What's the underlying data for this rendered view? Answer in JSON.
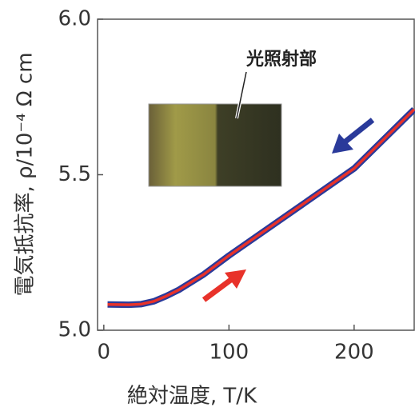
{
  "chart_data": {
    "type": "line",
    "xlabel": "絶対温度, T/K",
    "ylabel": "電気抵抗率, ρ/10⁻⁴ Ω cm",
    "annotation": "光照射部",
    "x": [
      3,
      20,
      30,
      40,
      50,
      60,
      80,
      100,
      150,
      200,
      248
    ],
    "values": [
      5.083,
      5.082,
      5.084,
      5.093,
      5.11,
      5.13,
      5.18,
      5.24,
      5.38,
      5.52,
      5.71
    ],
    "color": "#e8322a",
    "outline_color": "#2a3a9a",
    "xlim": [
      -5,
      248
    ],
    "ylim": [
      5.0,
      6.0
    ],
    "xticks": [
      0,
      100,
      200
    ],
    "yticks": [
      {
        "value": 5.0,
        "label": "5.0"
      },
      {
        "value": 5.5,
        "label": "5.5"
      },
      {
        "value": 6.0,
        "label": "6.0"
      }
    ]
  }
}
